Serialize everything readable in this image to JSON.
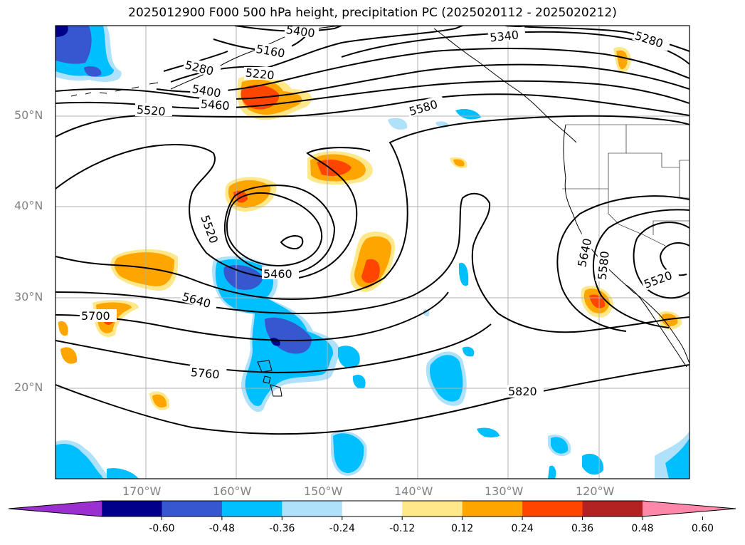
{
  "title": "2025012900 F000 500 hPa height, precipitation PC (2025020112 - 2025020212)",
  "lat_labels": [
    "50°N",
    "40°N",
    "30°N",
    "20°N"
  ],
  "lon_labels": [
    "170°W",
    "160°W",
    "150°W",
    "140°W",
    "130°W",
    "120°W"
  ],
  "contour_labels": [
    "5400",
    "5340",
    "5280",
    "5160",
    "5280",
    "5220",
    "5400",
    "5460",
    "5520",
    "5580",
    "5520",
    "5460",
    "5640",
    "5700",
    "5760",
    "5820",
    "5640",
    "5580",
    "5520"
  ],
  "colorbar": {
    "ticks": [
      "-0.60",
      "-0.48",
      "-0.36",
      "-0.24",
      "-0.12",
      "0.12",
      "0.24",
      "0.36",
      "0.48",
      "0.60"
    ],
    "colors": [
      "#9b30d0",
      "#00008b",
      "#3757d1",
      "#00bfff",
      "#afe1fa",
      "#ffffff",
      "#ffe88a",
      "#ffa500",
      "#ff4500",
      "#b22222",
      "#ff88aa"
    ]
  },
  "colors": {
    "positive_light": "#ffe88a",
    "positive_mid": "#ffa500",
    "positive_strong": "#ff4500",
    "negative_light": "#afe1fa",
    "negative_mid": "#00bfff",
    "negative_strong": "#3757d1",
    "negative_max": "#00008b"
  }
}
